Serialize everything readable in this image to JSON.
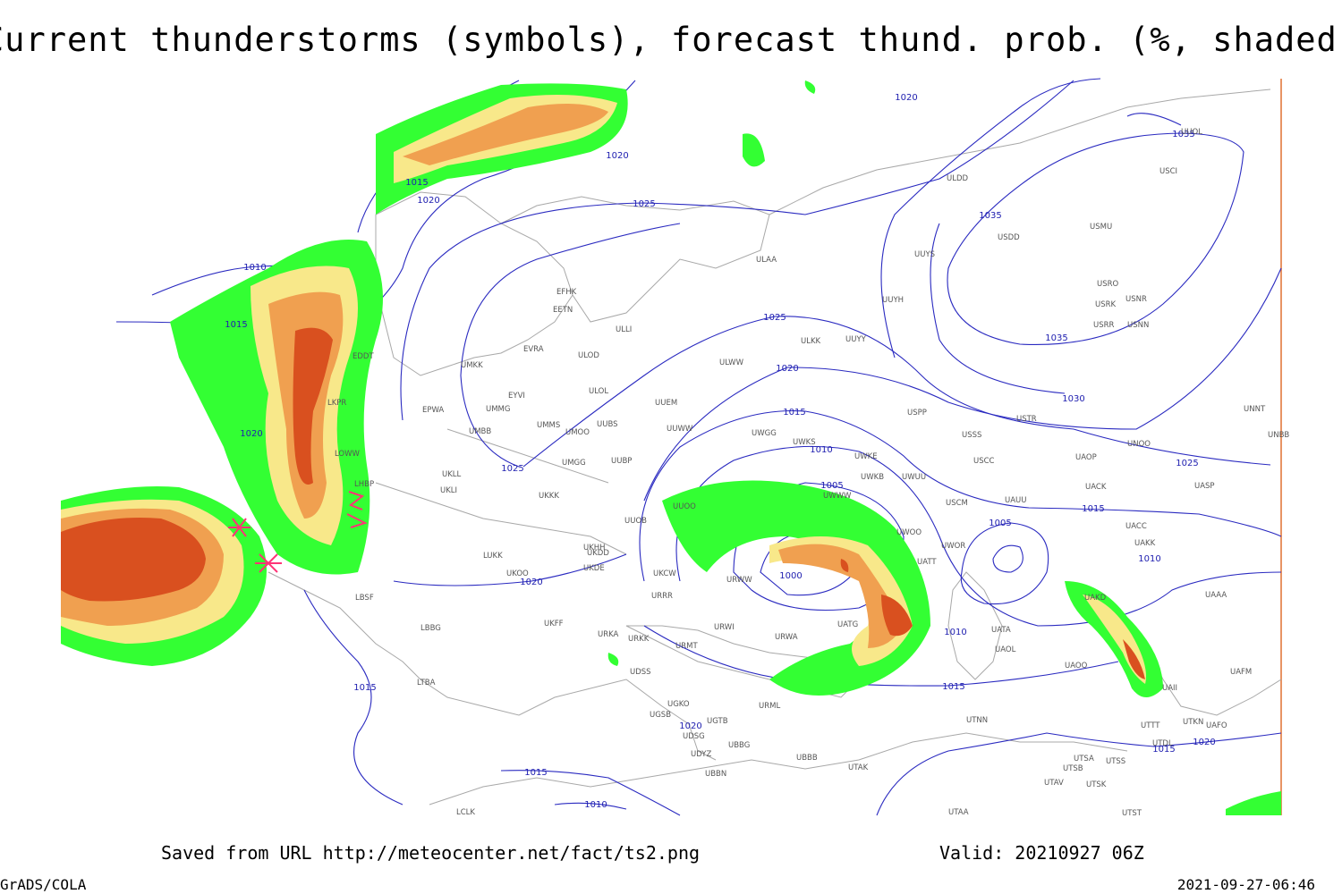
{
  "header": {
    "title": "Current thunderstorms (symbols), forecast thund. prob. (%, shaded)"
  },
  "isobar_labels": [
    "1020",
    "1020",
    "1015",
    "1020",
    "1025",
    "1035",
    "1035",
    "1010",
    "1015",
    "1025",
    "1035",
    "1020",
    "1030",
    "1015",
    "1020",
    "1010",
    "1025",
    "1025",
    "1005",
    "1015",
    "1005",
    "1010",
    "1000",
    "1020",
    "1010",
    "1015",
    "1015",
    "1020",
    "1020",
    "1015",
    "1015",
    "1010"
  ],
  "stations": [
    "ULDD",
    "USDD",
    "USMU",
    "UUYS",
    "ULAA",
    "USRO",
    "USRK",
    "USNR",
    "EFHK",
    "EETN",
    "UUYH",
    "USRR",
    "USNN",
    "ULLI",
    "ULKK",
    "UUYY",
    "EVRA",
    "ULOD",
    "ULWW",
    "UMKK",
    "EYVI",
    "ULOL",
    "UUEM",
    "EPWA",
    "UMMG",
    "USPP",
    "USTR",
    "UMMS",
    "UMOO",
    "UUBS",
    "UUWW",
    "UWGG",
    "USSS",
    "UNOO",
    "UNBB",
    "UNNT",
    "UMBB",
    "UWKS",
    "UWKE",
    "UAOP",
    "UUBP",
    "UMGG",
    "USCC",
    "UKLL",
    "UWKB",
    "UWUU",
    "UACK",
    "UASP",
    "UKLI",
    "UKKK",
    "USCM",
    "UAUU",
    "UWWW",
    "UUOB",
    "UUOO",
    "UACC",
    "UKHH",
    "UKDD",
    "LHBP",
    "LKPR",
    "LOWW",
    "EDDT",
    "UWOO",
    "UWOR",
    "UATT",
    "UATG",
    "URWW",
    "URRR",
    "UKCW",
    "UKDE",
    "UKOO",
    "LUKK",
    "UKFF",
    "LBSF",
    "LBBG",
    "URKA",
    "URKK",
    "URMT",
    "URWI",
    "URWA",
    "UATA",
    "UAOL",
    "UAOO",
    "LTBA",
    "UDSS",
    "UGKO",
    "UGSB",
    "UGTB",
    "UDSG",
    "UBBG",
    "UDYZ",
    "UBBB",
    "UBBN",
    "UTAK",
    "URML",
    "UTNN",
    "UTSA",
    "UTSS",
    "UTSB",
    "UTAV",
    "UTSK",
    "UTTT",
    "UTDL",
    "UTKN",
    "UAFO",
    "UAII",
    "UAFM",
    "UAAA",
    "UAKK",
    "UTAA",
    "UTST",
    "LCLK",
    "UUOL",
    "USCI",
    "UAKD"
  ],
  "footer": {
    "source": "Saved from URL http://meteocenter.net/fact/ts2.png",
    "valid": "Valid: 20210927 06Z",
    "software": "GrADS/COLA",
    "timestamp": "2021-09-27-06:46"
  }
}
